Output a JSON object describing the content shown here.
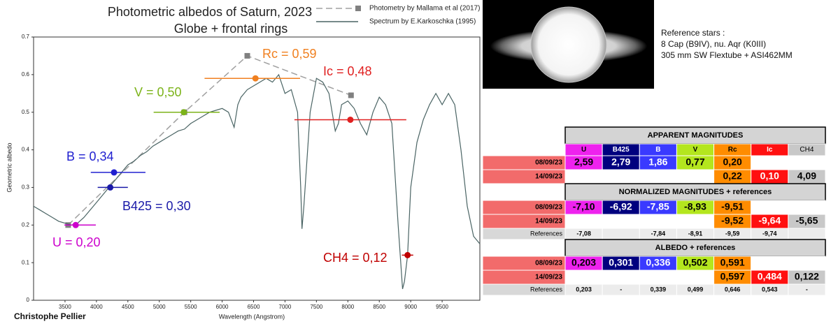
{
  "chart_data": {
    "type": "line",
    "title": "Photometric albedos of Saturn, 2023",
    "subtitle": "Globe + frontal rings",
    "x_label": "Wavelength (Angstrom)",
    "y_label": "Geometric albedo",
    "credit": "Christophe Pellier",
    "xlim": [
      3000,
      10100
    ],
    "ylim": [
      0,
      0.7
    ],
    "xticks": [
      3500,
      4000,
      4500,
      5000,
      5500,
      6000,
      6500,
      7000,
      7500,
      8000,
      8500,
      9000,
      9500
    ],
    "yticks": [
      0,
      0.1,
      0.2,
      0.3,
      0.4,
      0.5,
      0.6,
      0.7
    ],
    "series": [
      {
        "name": "Photometry by Mallama et al (2017)",
        "color": "#a0a0a0",
        "marker_color": "#808080",
        "style": "dashed",
        "x": [
          3550,
          5400,
          6400,
          8050
        ],
        "values": [
          0.2,
          0.5,
          0.65,
          0.545
        ]
      },
      {
        "name": "Spectrum by E.Karkoschka (1995)",
        "color": "#4a6464",
        "style": "solid",
        "x": [
          3000,
          3100,
          3200,
          3300,
          3400,
          3500,
          3600,
          3700,
          3800,
          3900,
          4000,
          4100,
          4200,
          4300,
          4400,
          4500,
          4600,
          4700,
          4800,
          4900,
          5000,
          5100,
          5200,
          5300,
          5400,
          5500,
          5600,
          5700,
          5800,
          5900,
          6000,
          6100,
          6190,
          6250,
          6300,
          6400,
          6500,
          6600,
          6700,
          6800,
          6900,
          7000,
          7100,
          7200,
          7250,
          7270,
          7300,
          7400,
          7500,
          7600,
          7700,
          7800,
          7850,
          7900,
          8000,
          8100,
          8200,
          8300,
          8400,
          8500,
          8600,
          8700,
          8800,
          8870,
          8900,
          8950,
          9000,
          9100,
          9200,
          9300,
          9400,
          9500,
          9600,
          9700,
          9800,
          9900,
          10000,
          10100
        ],
        "values": [
          0.25,
          0.24,
          0.23,
          0.22,
          0.21,
          0.205,
          0.2,
          0.205,
          0.22,
          0.24,
          0.26,
          0.28,
          0.3,
          0.32,
          0.34,
          0.36,
          0.37,
          0.385,
          0.395,
          0.41,
          0.42,
          0.43,
          0.44,
          0.45,
          0.455,
          0.47,
          0.48,
          0.49,
          0.5,
          0.505,
          0.51,
          0.5,
          0.46,
          0.52,
          0.54,
          0.56,
          0.57,
          0.58,
          0.59,
          0.58,
          0.6,
          0.55,
          0.56,
          0.5,
          0.3,
          0.19,
          0.25,
          0.5,
          0.59,
          0.58,
          0.55,
          0.45,
          0.47,
          0.52,
          0.53,
          0.51,
          0.47,
          0.44,
          0.5,
          0.54,
          0.52,
          0.47,
          0.2,
          0.03,
          0.05,
          0.12,
          0.3,
          0.42,
          0.48,
          0.52,
          0.55,
          0.52,
          0.55,
          0.52,
          0.4,
          0.25,
          0.17,
          0.15
        ]
      }
    ],
    "filters": {
      "labels": [
        "U = 0,20",
        "B425 = 0,30",
        "B = 0,34",
        "V = 0,50",
        "Rc = 0,59",
        "Ic = 0,48",
        "CH4 = 0,12"
      ],
      "colors": [
        "#cc00cc",
        "#1a1aa8",
        "#2020d0",
        "#7cb31a",
        "#f08020",
        "#e02020",
        "#c00000"
      ],
      "x": [
        3670,
        4220,
        4280,
        5390,
        6530,
        8040,
        8950
      ],
      "values": [
        0.2,
        0.3,
        0.34,
        0.5,
        0.59,
        0.48,
        0.12
      ],
      "x_start": [
        3490,
        4020,
        3910,
        4910,
        5720,
        7150,
        8860
      ],
      "x_end": [
        3990,
        4500,
        4780,
        5960,
        7240,
        8930,
        9040
      ]
    }
  },
  "notes": {
    "lines": [
      "Reference stars :",
      "8 Cap (B9IV), nu. Aqr (K0III)",
      "305 mm SW Flextube + ASI462MM"
    ]
  },
  "table": {
    "columns": [
      "U",
      "B425",
      "B",
      "V",
      "Rc",
      "Ic",
      "CH4"
    ],
    "column_colors": [
      "#ee22ee",
      "#00007f",
      "#3a3aff",
      "#b4e61e",
      "#ff8c00",
      "#ff1010",
      "#c8c8c8"
    ],
    "column_text_colors": [
      "#000000",
      "#ffffff",
      "#ffffff",
      "#000000",
      "#000000",
      "#ffffff",
      "#000000"
    ],
    "sections": [
      {
        "title": "APPARENT MAGNITUDES",
        "rows": [
          {
            "label": "08/09/23",
            "cells": [
              "2,59",
              "2,79",
              "1,86",
              "0,77",
              "0,20",
              null,
              null
            ]
          },
          {
            "label": "14/09/23",
            "cells": [
              null,
              null,
              null,
              null,
              "0,22",
              "0,10",
              "4,09"
            ]
          }
        ]
      },
      {
        "title": "NORMALIZED MAGNITUDES + references",
        "rows": [
          {
            "label": "08/09/23",
            "cells": [
              "-7,10",
              "-6,92",
              "-7,85",
              "-8,93",
              "-9,51",
              null,
              null
            ]
          },
          {
            "label": "14/09/23",
            "cells": [
              null,
              null,
              null,
              null,
              "-9,52",
              "-9,64",
              "-5,65"
            ]
          },
          {
            "label": "References",
            "cells": [
              "-7,08",
              null,
              "-7,84",
              "-8,91",
              "-9,59",
              "-9,74",
              null
            ]
          }
        ]
      },
      {
        "title": "ALBEDO + references",
        "rows": [
          {
            "label": "08/09/23",
            "cells": [
              "0,203",
              "0,301",
              "0,336",
              "0,502",
              "0,591",
              null,
              null
            ]
          },
          {
            "label": "14/09/23",
            "cells": [
              null,
              null,
              null,
              null,
              "0,597",
              "0,484",
              "0,122"
            ]
          },
          {
            "label": "References",
            "cells": [
              "0,203",
              "-",
              "0,339",
              "0,499",
              "0,646",
              "0,543",
              "-"
            ]
          }
        ]
      }
    ]
  }
}
